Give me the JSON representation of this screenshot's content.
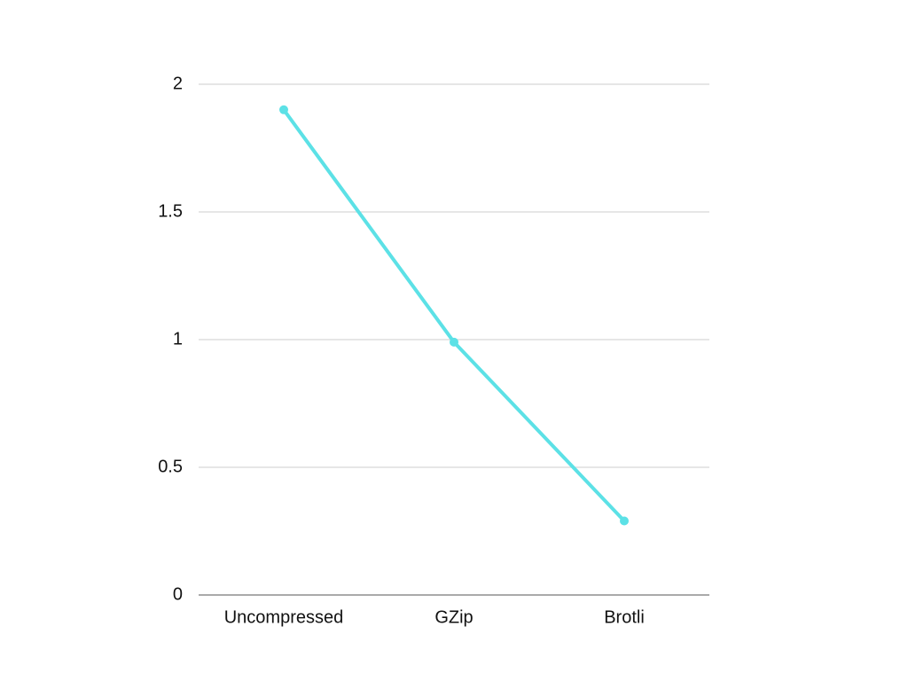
{
  "chart_data": {
    "type": "line",
    "categories": [
      "Uncompressed",
      "GZip",
      "Brotli"
    ],
    "values": [
      1.9,
      0.99,
      0.29
    ],
    "color": "#5ce1e6",
    "ylim": [
      0,
      2
    ],
    "yticks": [
      0,
      0.5,
      1,
      1.5,
      2
    ],
    "grid": true
  }
}
